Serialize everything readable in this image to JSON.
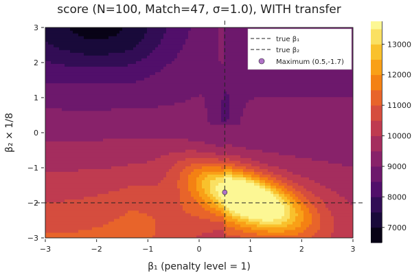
{
  "chart_data": {
    "type": "heatmap",
    "subtype": "filled-contour",
    "title": "score (N=100, Match=47, σ=1.0), WITH transfer",
    "xlabel": "β₁ (penalty level = 1)",
    "ylabel": "β₂ × 1/8",
    "xlim": [
      -3,
      3
    ],
    "ylim": [
      -3,
      3
    ],
    "xticks": [
      -3,
      -2,
      -1,
      0,
      1,
      2,
      3
    ],
    "yticks": [
      -3,
      -2,
      -1,
      0,
      1,
      2,
      3
    ],
    "xtick_labels": [
      "−3",
      "−2",
      "−1",
      "0",
      "1",
      "2",
      "3"
    ],
    "ytick_labels": [
      "−3",
      "−2",
      "−1",
      "0",
      "1",
      "2",
      "3"
    ],
    "grid": true,
    "colormap": "inferno",
    "colorbar": {
      "min": 6500,
      "max": 13750,
      "levels": [
        6500,
        7000,
        7500,
        8000,
        8500,
        9000,
        9500,
        10000,
        10500,
        11000,
        11500,
        12000,
        12500,
        13000,
        13500,
        13750
      ],
      "ticks": [
        7000,
        8000,
        9000,
        10000,
        11000,
        12000,
        13000
      ],
      "tick_labels": [
        "7000",
        "8000",
        "9000",
        "10000",
        "11000",
        "12000",
        "13000"
      ]
    },
    "reference_lines": [
      {
        "name": "true β₁",
        "orientation": "vertical",
        "value": 0.5,
        "style": "dashed"
      },
      {
        "name": "true β₂",
        "orientation": "horizontal",
        "value": -2,
        "style": "dashed"
      }
    ],
    "maximum_point": {
      "label": "Maximum (0.5,-1.7)",
      "x": 0.5,
      "y": -1.7,
      "color": "#b072c8"
    },
    "legend_position": "top-right"
  }
}
